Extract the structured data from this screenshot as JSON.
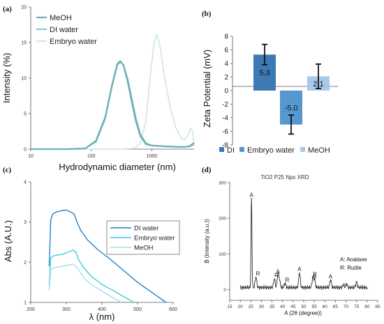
{
  "chart_data": [
    {
      "panel": "(a)",
      "type": "line",
      "title": "",
      "xlabel": "Hydrodynamic diameter (nm)",
      "ylabel": "Intensity (%)",
      "xscale": "log",
      "xlim": [
        10,
        5000
      ],
      "ylim": [
        0,
        20
      ],
      "x_ticks": [
        "10",
        "100",
        "1000"
      ],
      "y_ticks": [
        "0",
        "5",
        "10",
        "15",
        "20"
      ],
      "legend": "top-left",
      "colors": [
        "#6aaeb4",
        "#8fc6cb",
        "#cfe5e7"
      ],
      "series": [
        {
          "name": "MeOH",
          "x": [
            10,
            40,
            80,
            120,
            170,
            220,
            270,
            300,
            340,
            400,
            470,
            550,
            650,
            800,
            1000,
            1500,
            2000,
            2800,
            3500,
            4300,
            5000
          ],
          "y": [
            0,
            0,
            0.1,
            1.2,
            4.5,
            9.0,
            12.0,
            12.4,
            11.8,
            9.5,
            6.5,
            3.8,
            1.8,
            0.7,
            0.5,
            0.4,
            0.35,
            0.3,
            0.3,
            0.45,
            0.9
          ]
        },
        {
          "name": "DI water",
          "x": [
            10,
            40,
            80,
            120,
            170,
            220,
            270,
            300,
            340,
            400,
            470,
            550,
            650,
            800,
            1000,
            1500,
            2000,
            2800,
            3500,
            4300,
            5000
          ],
          "y": [
            0,
            0,
            0.1,
            1.0,
            4.2,
            8.7,
            11.8,
            12.2,
            11.9,
            10.0,
            7.2,
            4.4,
            2.2,
            0.9,
            0.5,
            0.45,
            0.4,
            0.35,
            0.3,
            0.35,
            0.6
          ]
        },
        {
          "name": "Embryo water",
          "x": [
            10,
            300,
            500,
            650,
            800,
            950,
            1100,
            1200,
            1350,
            1600,
            2000,
            2500,
            3100,
            3500,
            4000,
            4400,
            4700,
            5000
          ],
          "y": [
            0,
            0,
            0.1,
            0.8,
            4.0,
            10.5,
            15.2,
            16.1,
            14.8,
            10.5,
            6.0,
            3.0,
            1.5,
            1.3,
            2.0,
            3.0,
            2.5,
            0.5
          ]
        }
      ]
    },
    {
      "panel": "(b)",
      "type": "bar",
      "title": "",
      "xlabel": "",
      "ylabel": "Zeta Potential (mV)",
      "ylim": [
        -8,
        8
      ],
      "y_ticks": [
        "-8",
        "-6",
        "-4",
        "-2",
        "0",
        "2",
        "4",
        "6",
        "8"
      ],
      "categories": [
        "DI",
        "Embryo water",
        "MeOH"
      ],
      "values": [
        5.3,
        -5.0,
        2.1
      ],
      "value_labels": [
        "5.3",
        "-5.0",
        "2.1"
      ],
      "errors": [
        1.5,
        1.4,
        1.8
      ],
      "colors": [
        "#3f79b5",
        "#5797d0",
        "#a9c9ea"
      ],
      "legend": "bottom"
    },
    {
      "panel": "(c)",
      "type": "line",
      "title": "",
      "xlabel": "λ (nm)",
      "ylabel": "Abs (A.U.)",
      "xlim": [
        200,
        600
      ],
      "ylim": [
        1,
        4
      ],
      "x_ticks": [
        "200",
        "300",
        "400",
        "500",
        "600"
      ],
      "y_ticks": [
        "1",
        "2",
        "3",
        "4"
      ],
      "legend": "right",
      "colors": [
        "#1a84cf",
        "#33d2dc",
        "#a9dbe9"
      ],
      "series": [
        {
          "name": "DI water",
          "x": [
            252,
            256,
            262,
            272,
            285,
            300,
            312,
            322,
            330,
            340,
            360,
            390,
            420,
            460,
            500,
            540,
            580
          ],
          "y": [
            1.9,
            3.05,
            3.2,
            3.25,
            3.28,
            3.3,
            3.25,
            3.2,
            3.0,
            2.8,
            2.55,
            2.3,
            2.1,
            1.8,
            1.5,
            1.25,
            1.0
          ]
        },
        {
          "name": "Embryo water",
          "x": [
            252,
            256,
            262,
            275,
            290,
            305,
            318,
            327,
            335,
            350,
            370,
            400,
            430,
            460,
            490
          ],
          "y": [
            1.4,
            2.1,
            2.15,
            2.18,
            2.2,
            2.25,
            2.3,
            2.25,
            2.05,
            1.85,
            1.65,
            1.45,
            1.3,
            1.15,
            1.0
          ]
        },
        {
          "name": "MeOH",
          "x": [
            252,
            256,
            262,
            275,
            290,
            305,
            318,
            327,
            335,
            350,
            370,
            400,
            430,
            455
          ],
          "y": [
            1.3,
            1.8,
            1.85,
            1.88,
            1.9,
            1.93,
            1.95,
            1.9,
            1.8,
            1.6,
            1.45,
            1.28,
            1.12,
            1.0
          ]
        }
      ]
    },
    {
      "panel": "(d)",
      "type": "line",
      "title": "TiO2 P25 Nps XRD",
      "xlabel": "A (2θ (degree))",
      "ylabel": "B (Intensity (a.u.))",
      "xlim": [
        15,
        85
      ],
      "ylim": [
        -30,
        300
      ],
      "x_ticks": [
        "15",
        "20",
        "25",
        "30",
        "35",
        "40",
        "45",
        "50",
        "55",
        "60",
        "65",
        "70",
        "75",
        "80",
        "85"
      ],
      "y_ticks": [
        "0",
        "100",
        "200",
        "300"
      ],
      "legend_note": [
        "A: Anatase",
        "R: Rutile"
      ],
      "color": "#2b2b2b",
      "peaks": [
        {
          "label": "A",
          "x": 25.3,
          "y": 250
        },
        {
          "label": "R",
          "x": 27.4,
          "y": 30
        },
        {
          "label": "R",
          "x": 36.1,
          "y": 25
        },
        {
          "label": "A",
          "x": 37.8,
          "y": 35
        },
        {
          "label": "R",
          "x": 41.2,
          "y": 12
        },
        {
          "label": "A",
          "x": 48.0,
          "y": 42
        },
        {
          "label": "R",
          "x": 54.3,
          "y": 28
        },
        {
          "label": "A",
          "x": 55.1,
          "y": 22
        },
        {
          "label": "A",
          "x": 62.7,
          "y": 22
        }
      ],
      "extra_peaks": [
        {
          "x": 38.5,
          "y": 22
        },
        {
          "x": 68.8,
          "y": 8
        },
        {
          "x": 70.3,
          "y": 10
        },
        {
          "x": 75.0,
          "y": 16
        }
      ]
    }
  ]
}
